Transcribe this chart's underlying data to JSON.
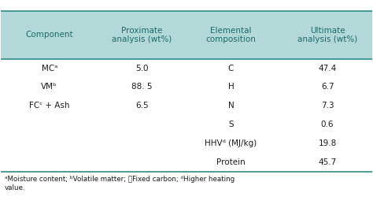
{
  "header_bg": "#b2d8d8",
  "header_text_color": "#1a6b6b",
  "body_bg": "#ffffff",
  "body_text_color": "#1a1a1a",
  "footnote_text_color": "#1a1a1a",
  "line_color": "#2e8b8b",
  "col1_header": "Component",
  "col2_header": "Proximate\nanalysis (wt%)",
  "col3_header": "Elemental\ncomposition",
  "col4_header": "Ultimate\nanalysis (wt%)",
  "rows": [
    [
      "MCᵃ",
      "5.0",
      "C",
      "47.4"
    ],
    [
      "VMᵇ",
      "88. 5",
      "H",
      "6.7"
    ],
    [
      "FCᶜ + Ash",
      "6.5",
      "N",
      "7.3"
    ],
    [
      "",
      "",
      "S",
      "0.6"
    ],
    [
      "",
      "",
      "HHVᵈ (MJ/kg)",
      "19.8"
    ],
    [
      "",
      "",
      "Protein",
      "45.7"
    ]
  ],
  "footnote": "ᵃMoisture content; ᵇVolatile matter; ᷝFixed carbon; ᵈHigher heating\nvalue.",
  "font_size": 7.5,
  "header_font_size": 7.5
}
